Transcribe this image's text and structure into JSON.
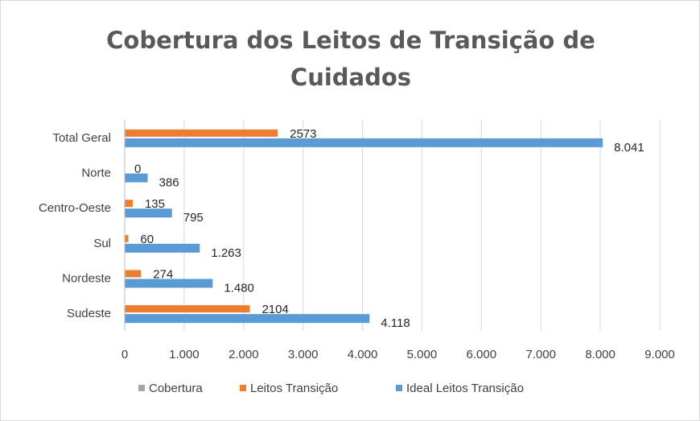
{
  "chart_data": {
    "type": "bar",
    "orientation": "horizontal",
    "title": "Cobertura dos Leitos de Transição de Cuidados",
    "categories": [
      "Sudeste",
      "Nordeste",
      "Sul",
      "Centro-Oeste",
      "Norte",
      "Total Geral"
    ],
    "series": [
      {
        "name": "Cobertura",
        "values": [
          null,
          null,
          null,
          null,
          null,
          null
        ],
        "color": "#a5a5a5"
      },
      {
        "name": "Leitos Transição",
        "values": [
          2104,
          274,
          60,
          135,
          0,
          2573
        ],
        "labels": [
          "2104",
          "274",
          "60",
          "135",
          "0",
          "2573"
        ],
        "color": "#ed7d31"
      },
      {
        "name": "Ideal Leitos Transição",
        "values": [
          4118,
          1480,
          1263,
          795,
          386,
          8041
        ],
        "labels": [
          "4.118",
          "1.480",
          "1.263",
          "795",
          "386",
          "8.041"
        ],
        "color": "#5b9bd5"
      }
    ],
    "xlim": [
      0,
      9000
    ],
    "x_ticks": [
      0,
      1000,
      2000,
      3000,
      4000,
      5000,
      6000,
      7000,
      8000,
      9000
    ],
    "x_tick_labels": [
      "0",
      "1.000",
      "2.000",
      "3.000",
      "4.000",
      "5.000",
      "6.000",
      "7.000",
      "8.000",
      "9.000"
    ],
    "grid": true,
    "legend_position": "bottom",
    "gridline_color": "#d9d9d9"
  }
}
